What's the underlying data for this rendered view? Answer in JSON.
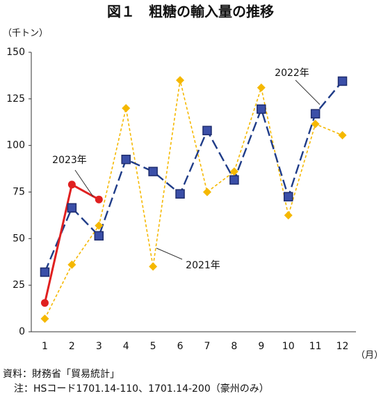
{
  "chart_data": {
    "type": "line",
    "title": "図１　粗糖の輸入量の推移",
    "y_label": "（千トン）",
    "x_label": "（月）",
    "categories": [
      "1",
      "2",
      "3",
      "4",
      "5",
      "6",
      "7",
      "8",
      "9",
      "10",
      "11",
      "12"
    ],
    "series": [
      {
        "name": "2021年",
        "color": "#f5b800",
        "marker": "diamond",
        "dash": "short",
        "values": [
          7,
          36,
          57,
          120,
          35,
          135,
          75,
          86,
          131,
          62.5,
          111.5,
          105.5
        ]
      },
      {
        "name": "2022年",
        "color": "#1f3c88",
        "marker": "square",
        "dash": "long",
        "values": [
          32,
          66.5,
          51.5,
          92.5,
          86,
          74,
          108,
          81.5,
          119.5,
          72.5,
          117,
          134.5
        ]
      },
      {
        "name": "2023年",
        "color": "#e02020",
        "marker": "circle",
        "dash": "solid",
        "values": [
          15.5,
          79,
          71,
          null,
          null,
          null,
          null,
          null,
          null,
          null,
          null,
          null
        ]
      }
    ],
    "ylim": [
      0,
      150
    ],
    "yticks": [
      0,
      25,
      50,
      75,
      100,
      125,
      150
    ],
    "grid": false,
    "source": "資料：財務省「貿易統計」",
    "note": "注：HSコード1701.14-110、1701.14-200（豪州のみ）"
  }
}
